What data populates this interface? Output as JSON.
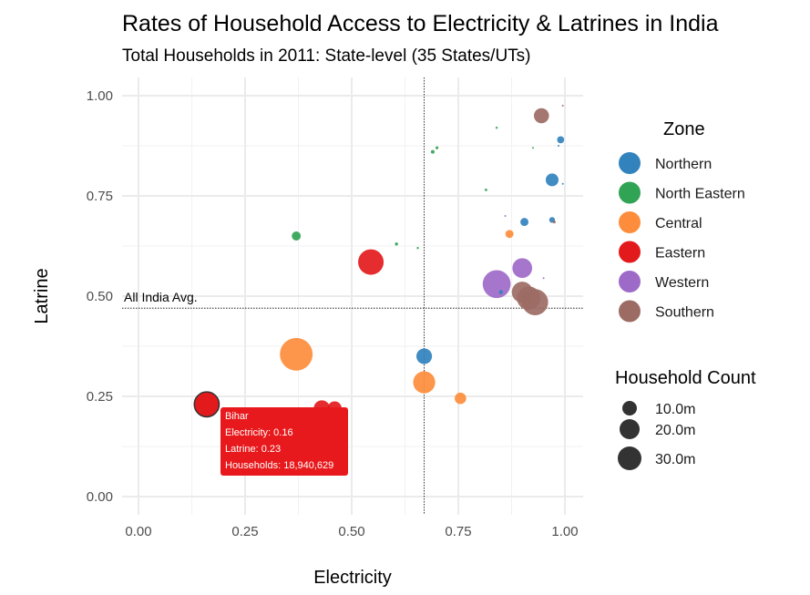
{
  "chart_data": {
    "type": "scatter",
    "title": "Rates of Household Access to Electricity & Latrines in India",
    "subtitle": "Total Households in 2011: State-level (35 States/UTs)",
    "xlabel": "Electricity",
    "ylabel": "Latrine",
    "xlim": [
      -0.04,
      1.04
    ],
    "ylim": [
      -0.04,
      1.04
    ],
    "x_ticks": [
      {
        "value": 0.0,
        "label": "0.00"
      },
      {
        "value": 0.25,
        "label": "0.25"
      },
      {
        "value": 0.5,
        "label": "0.50"
      },
      {
        "value": 0.75,
        "label": "0.75"
      },
      {
        "value": 1.0,
        "label": "1.00"
      }
    ],
    "y_ticks": [
      {
        "value": 0.0,
        "label": "0.00"
      },
      {
        "value": 0.25,
        "label": "0.25"
      },
      {
        "value": 0.5,
        "label": "0.50"
      },
      {
        "value": 0.75,
        "label": "0.75"
      },
      {
        "value": 1.0,
        "label": "1.00"
      }
    ],
    "grid": true,
    "reference_lines": {
      "x": 0.67,
      "y": 0.47,
      "label": "All India Avg."
    },
    "legend": {
      "placement": "right",
      "color_title": "Zone",
      "size_title": "Household Count",
      "size_items": [
        {
          "label": "10.0m",
          "value": 10000000
        },
        {
          "label": "20.0m",
          "value": 20000000
        },
        {
          "label": "30.0m",
          "value": 30000000
        }
      ]
    },
    "series": [
      {
        "name": "Northern",
        "color": "#3182bd",
        "points": [
          {
            "x": 0.99,
            "y": 0.89,
            "households": 1500000
          },
          {
            "x": 0.97,
            "y": 0.79,
            "households": 5000000
          },
          {
            "x": 0.905,
            "y": 0.685,
            "households": 2000000
          },
          {
            "x": 0.97,
            "y": 0.69,
            "households": 1000000
          },
          {
            "x": 0.67,
            "y": 0.35,
            "households": 7500000
          },
          {
            "x": 0.985,
            "y": 0.875,
            "households": 80000
          },
          {
            "x": 0.995,
            "y": 0.78,
            "households": 60000
          },
          {
            "x": 0.85,
            "y": 0.51,
            "households": 500000
          }
        ]
      },
      {
        "name": "North Eastern",
        "color": "#31a354",
        "points": [
          {
            "x": 0.37,
            "y": 0.65,
            "households": 2500000
          },
          {
            "x": 0.605,
            "y": 0.63,
            "households": 300000
          },
          {
            "x": 0.655,
            "y": 0.62,
            "households": 150000
          },
          {
            "x": 0.69,
            "y": 0.86,
            "households": 400000
          },
          {
            "x": 0.7,
            "y": 0.87,
            "households": 250000
          },
          {
            "x": 0.815,
            "y": 0.765,
            "households": 200000
          },
          {
            "x": 0.84,
            "y": 0.92,
            "households": 150000
          },
          {
            "x": 0.925,
            "y": 0.87,
            "households": 90000
          }
        ]
      },
      {
        "name": "Central",
        "color": "#fd8d3c",
        "points": [
          {
            "x": 0.37,
            "y": 0.355,
            "households": 32900000
          },
          {
            "x": 0.67,
            "y": 0.285,
            "households": 14900000
          },
          {
            "x": 0.755,
            "y": 0.245,
            "households": 4000000
          },
          {
            "x": 0.87,
            "y": 0.655,
            "households": 2000000
          }
        ]
      },
      {
        "name": "Eastern",
        "color": "#e31a1c",
        "points": [
          {
            "x": 0.16,
            "y": 0.23,
            "households": 18940629
          },
          {
            "x": 0.43,
            "y": 0.22,
            "households": 8000000
          },
          {
            "x": 0.46,
            "y": 0.22,
            "households": 6000000
          },
          {
            "x": 0.545,
            "y": 0.585,
            "households": 20000000
          }
        ]
      },
      {
        "name": "Western",
        "color": "#9e6ac8",
        "points": [
          {
            "x": 0.84,
            "y": 0.53,
            "households": 24000000
          },
          {
            "x": 0.9,
            "y": 0.57,
            "households": 12000000
          },
          {
            "x": 0.95,
            "y": 0.545,
            "households": 80000
          },
          {
            "x": 0.86,
            "y": 0.7,
            "households": 60000
          }
        ]
      },
      {
        "name": "Southern",
        "color": "#9c6b64",
        "points": [
          {
            "x": 0.945,
            "y": 0.95,
            "households": 7000000
          },
          {
            "x": 0.9,
            "y": 0.51,
            "households": 13500000
          },
          {
            "x": 0.915,
            "y": 0.495,
            "households": 17000000
          },
          {
            "x": 0.93,
            "y": 0.485,
            "households": 21000000
          },
          {
            "x": 0.975,
            "y": 0.685,
            "households": 250000
          },
          {
            "x": 0.995,
            "y": 0.975,
            "households": 20000
          }
        ]
      }
    ],
    "tooltip": {
      "title": "Bihar",
      "lines": [
        "Electricity: 0.16",
        "Latrine: 0.23",
        "Households: 18,940,629"
      ],
      "series": "Eastern",
      "x": 0.16,
      "y": 0.23
    }
  }
}
